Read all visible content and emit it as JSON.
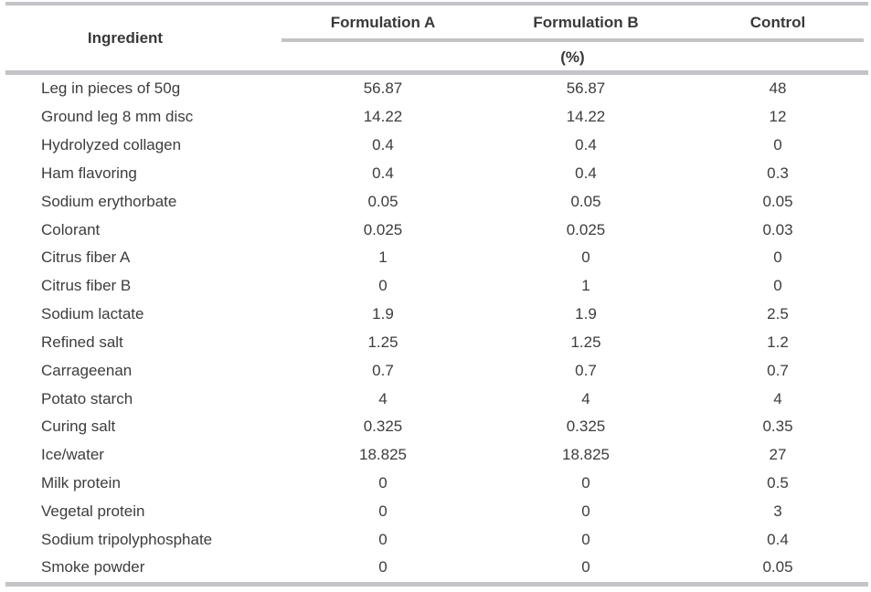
{
  "colors": {
    "rule": "#c3c3c8",
    "text": "#3d3d40",
    "header_text": "#39393c",
    "background": "#ffffff"
  },
  "table": {
    "columns": [
      "Ingredient",
      "Formulation A",
      "Formulation B",
      "Control"
    ],
    "unit_label": "(%)",
    "rows": [
      {
        "ingredient": "Leg in pieces of 50g",
        "formulation_a": "56.87",
        "formulation_b": "56.87",
        "control": "48"
      },
      {
        "ingredient": "Ground leg 8 mm disc",
        "formulation_a": "14.22",
        "formulation_b": "14.22",
        "control": "12"
      },
      {
        "ingredient": "Hydrolyzed collagen",
        "formulation_a": "0.4",
        "formulation_b": "0.4",
        "control": "0"
      },
      {
        "ingredient": "Ham flavoring",
        "formulation_a": "0.4",
        "formulation_b": "0.4",
        "control": "0.3"
      },
      {
        "ingredient": "Sodium erythorbate",
        "formulation_a": "0.05",
        "formulation_b": "0.05",
        "control": "0.05"
      },
      {
        "ingredient": "Colorant",
        "formulation_a": "0.025",
        "formulation_b": "0.025",
        "control": "0.03"
      },
      {
        "ingredient": "Citrus fiber A",
        "formulation_a": "1",
        "formulation_b": "0",
        "control": "0"
      },
      {
        "ingredient": "Citrus fiber B",
        "formulation_a": "0",
        "formulation_b": "1",
        "control": "0"
      },
      {
        "ingredient": "Sodium lactate",
        "formulation_a": "1.9",
        "formulation_b": "1.9",
        "control": "2.5"
      },
      {
        "ingredient": "Refined salt",
        "formulation_a": "1.25",
        "formulation_b": "1.25",
        "control": "1.2"
      },
      {
        "ingredient": "Carrageenan",
        "formulation_a": "0.7",
        "formulation_b": "0.7",
        "control": "0.7"
      },
      {
        "ingredient": "Potato starch",
        "formulation_a": "4",
        "formulation_b": "4",
        "control": "4"
      },
      {
        "ingredient": "Curing salt",
        "formulation_a": "0.325",
        "formulation_b": "0.325",
        "control": "0.35"
      },
      {
        "ingredient": "Ice/water",
        "formulation_a": "18.825",
        "formulation_b": "18.825",
        "control": "27"
      },
      {
        "ingredient": "Milk protein",
        "formulation_a": "0",
        "formulation_b": "0",
        "control": "0.5"
      },
      {
        "ingredient": "Vegetal protein",
        "formulation_a": "0",
        "formulation_b": "0",
        "control": "3"
      },
      {
        "ingredient": "Sodium tripolyphosphate",
        "formulation_a": "0",
        "formulation_b": "0",
        "control": "0.4"
      },
      {
        "ingredient": "Smoke powder",
        "formulation_a": "0",
        "formulation_b": "0",
        "control": "0.05"
      }
    ]
  }
}
